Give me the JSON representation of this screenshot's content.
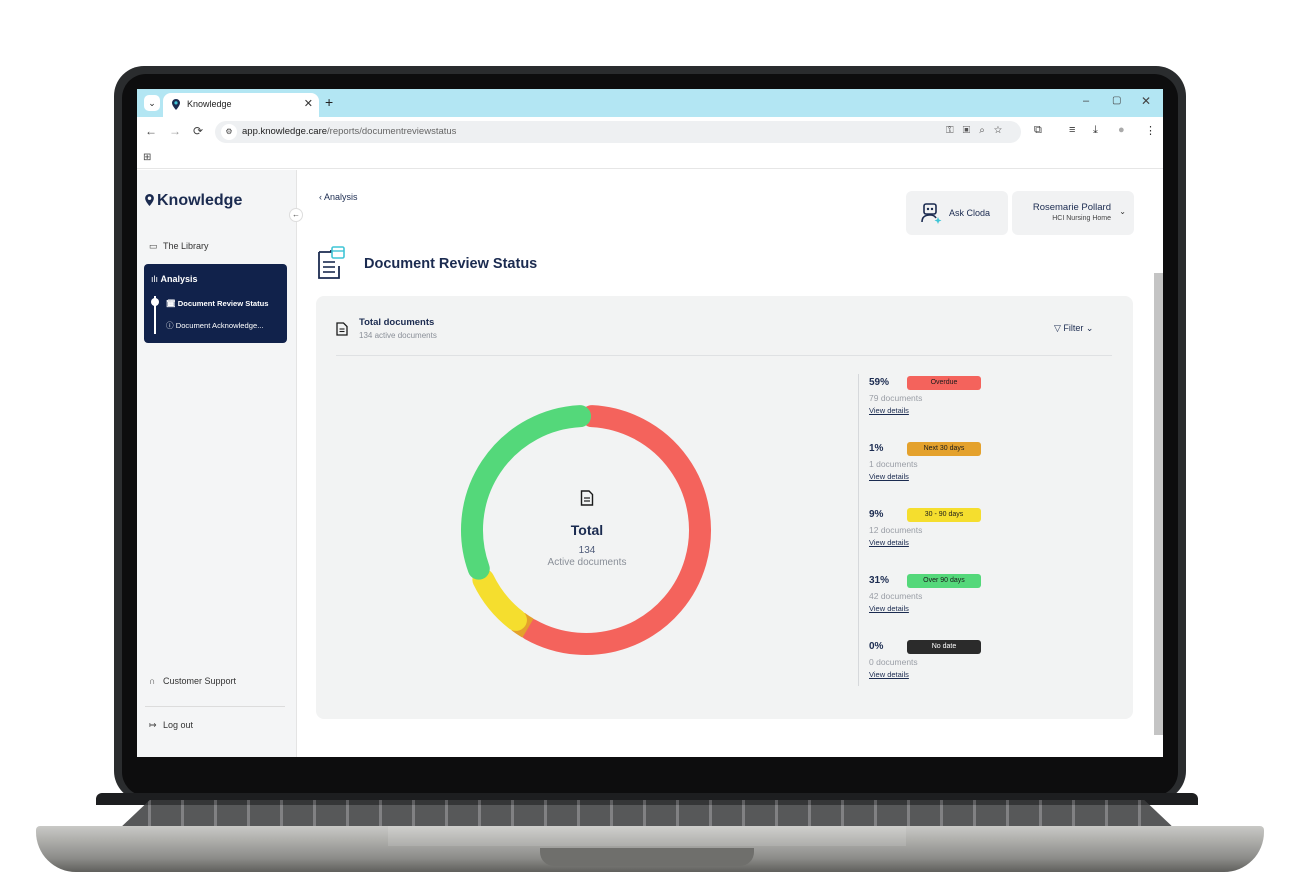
{
  "browser": {
    "tab_title": "Knowledge",
    "tab_close": "✕",
    "new_tab": "+",
    "tab_dropdown": "⌄",
    "url_host": "app.knowledge.care",
    "url_path": "/reports/documentreviewstatus",
    "window_min": "–",
    "window_max": "▢",
    "window_close": "✕",
    "nav_back": "←",
    "nav_forward": "→",
    "nav_reload": "⟳",
    "apps_icon": "⊞"
  },
  "sidebar": {
    "brand": "Knowledge",
    "collapse": "←",
    "library": "The Library",
    "analysis": "Analysis",
    "sub_items": [
      "Document Review Status",
      "Document Acknowledge..."
    ],
    "support": "Customer Support",
    "logout": "Log out"
  },
  "header": {
    "back_label": "Analysis",
    "ask_label": "Ask Cloda",
    "user_name": "Rosemarie Pollard",
    "user_org": "HCI Nursing Home",
    "page_title": "Document Review Status"
  },
  "card": {
    "title": "Total documents",
    "subtitle": "134 active documents",
    "filter": "Filter"
  },
  "donut_center": {
    "title": "Total",
    "count": "134",
    "label": "Active documents"
  },
  "legend": [
    {
      "pct": "59%",
      "badge": "Overdue",
      "color": "#f4635c",
      "docs": "79 documents",
      "link": "View details"
    },
    {
      "pct": "1%",
      "badge": "Next 30 days",
      "color": "#e4a12c",
      "docs": "1 documents",
      "link": "View details"
    },
    {
      "pct": "9%",
      "badge": "30 - 90 days",
      "color": "#f5de2e",
      "docs": "12 documents",
      "link": "View details"
    },
    {
      "pct": "31%",
      "badge": "Over 90 days",
      "color": "#54d87a",
      "docs": "42 documents",
      "link": "View details"
    },
    {
      "pct": "0%",
      "badge": "No date",
      "color": "#2b2b2b",
      "docs": "0 documents",
      "link": "View details"
    }
  ],
  "chart_data": {
    "type": "pie",
    "categories": [
      "Overdue",
      "Next 30 days",
      "30 - 90 days",
      "Over 90 days",
      "No date"
    ],
    "values": [
      79,
      1,
      12,
      42,
      0
    ],
    "colors": [
      "#f4635c",
      "#e4a12c",
      "#f5de2e",
      "#54d87a",
      "#2b2b2b"
    ],
    "title": "Total"
  }
}
